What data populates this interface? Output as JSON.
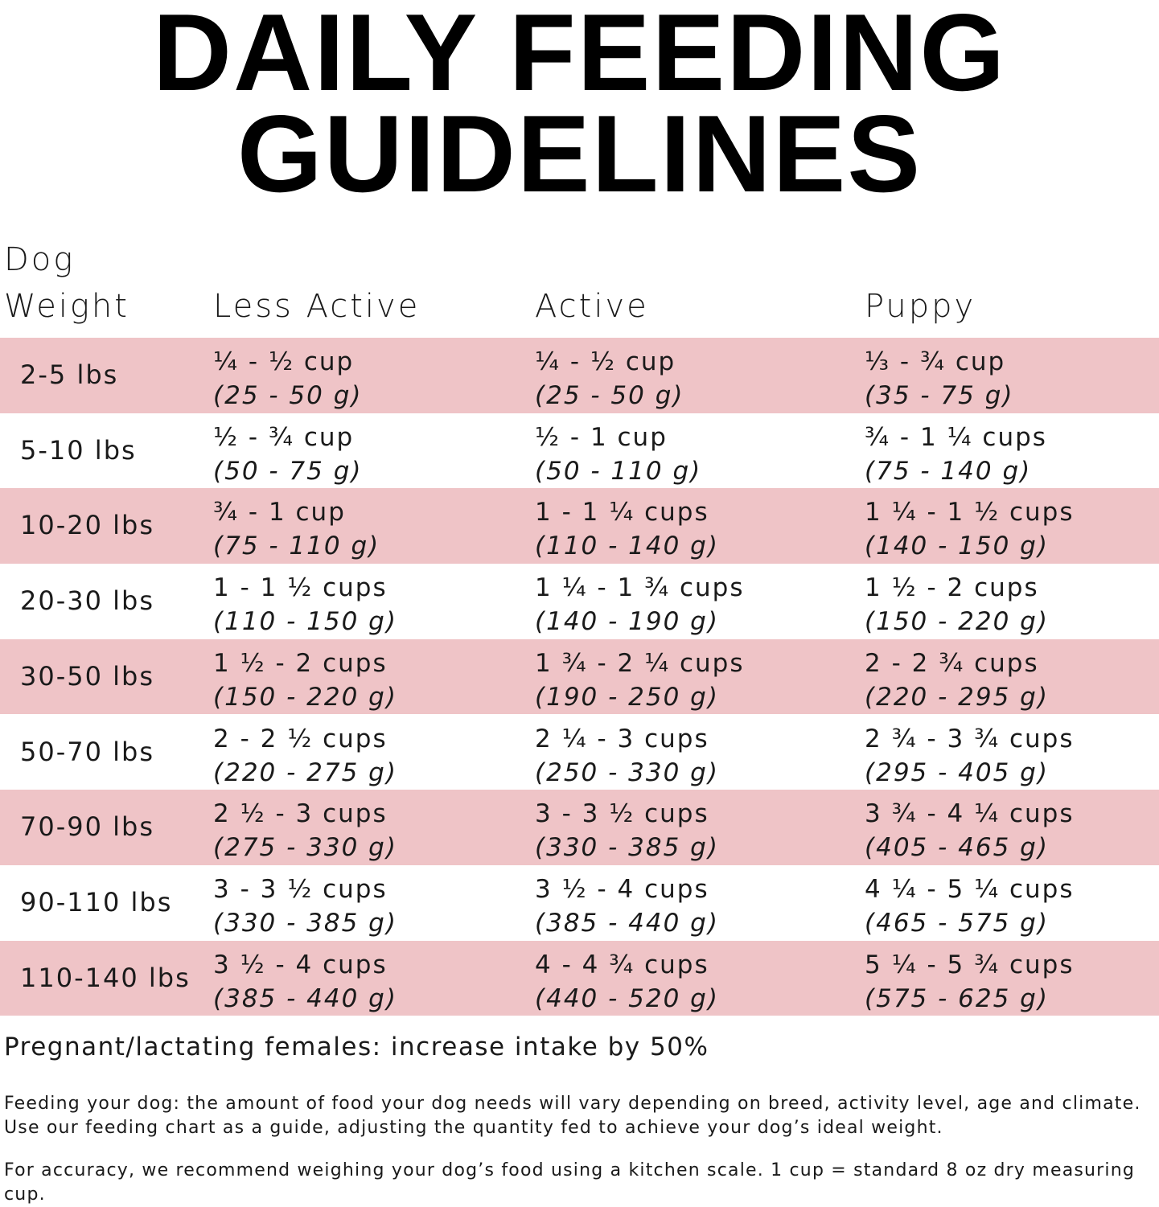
{
  "title": {
    "lines": [
      "DAILY FEEDING",
      "GUIDELINES"
    ]
  },
  "table": {
    "headers": [
      "Dog Weight",
      "Less Active",
      "Active",
      "Puppy"
    ],
    "rows": [
      {
        "weight": "2-5 lbs",
        "cells": [
          [
            "¼ - ½ cup",
            "(25 - 50 g)"
          ],
          [
            "¼ - ½ cup",
            "(25 - 50 g)"
          ],
          [
            "⅓ - ¾ cup",
            "(35 - 75 g)"
          ]
        ]
      },
      {
        "weight": "5-10 lbs",
        "cells": [
          [
            "½ - ¾ cup",
            "(50 - 75 g)"
          ],
          [
            "½ - 1 cup",
            "(50 - 110 g)"
          ],
          [
            "¾ - 1 ¼ cups",
            "(75 - 140 g)"
          ]
        ]
      },
      {
        "weight": "10-20 lbs",
        "cells": [
          [
            "¾ - 1 cup",
            "(75 - 110 g)"
          ],
          [
            "1 - 1 ¼ cups",
            "(110 - 140 g)"
          ],
          [
            "1 ¼ - 1 ½ cups",
            "(140 - 150 g)"
          ]
        ]
      },
      {
        "weight": "20-30 lbs",
        "cells": [
          [
            "1 - 1 ½ cups",
            "(110 - 150 g)"
          ],
          [
            "1 ¼ - 1 ¾ cups",
            "(140 - 190 g)"
          ],
          [
            "1 ½ - 2 cups",
            "(150 - 220 g)"
          ]
        ]
      },
      {
        "weight": "30-50 lbs",
        "cells": [
          [
            "1 ½ - 2 cups",
            "(150 - 220 g)"
          ],
          [
            "1 ¾ - 2 ¼ cups",
            "(190 - 250 g)"
          ],
          [
            "2 - 2 ¾ cups",
            "(220 - 295 g)"
          ]
        ]
      },
      {
        "weight": "50-70 lbs",
        "cells": [
          [
            "2 - 2 ½ cups",
            "(220 - 275 g)"
          ],
          [
            "2 ¼ - 3 cups",
            "(250 - 330 g)"
          ],
          [
            "2 ¾ - 3 ¾ cups",
            "(295 - 405 g)"
          ]
        ]
      },
      {
        "weight": "70-90 lbs",
        "cells": [
          [
            "2 ½ - 3 cups",
            "(275 - 330 g)"
          ],
          [
            "3 - 3 ½ cups",
            "(330 - 385 g)"
          ],
          [
            "3 ¾ - 4 ¼ cups",
            "(405 - 465 g)"
          ]
        ]
      },
      {
        "weight": "90-110 lbs",
        "cells": [
          [
            "3 - 3 ½ cups",
            "(330 - 385 g)"
          ],
          [
            "3 ½ - 4 cups",
            "(385 - 440 g)"
          ],
          [
            "4 ¼ - 5 ¼ cups",
            "(465 - 575 g)"
          ]
        ]
      },
      {
        "weight": "110-140 lbs",
        "cells": [
          [
            "3 ½ - 4 cups",
            "(385 - 440 g)"
          ],
          [
            "4 - 4 ¾ cups",
            "(440 - 520 g)"
          ],
          [
            "5 ¼ - 5 ¾ cups",
            "(575 - 625 g)"
          ]
        ]
      }
    ]
  },
  "note": "Pregnant/lactating females: increase intake by 50%",
  "paragraphs": [
    "Feeding your dog: the amount of food your dog needs will vary depending on breed, activity level, age and climate. Use our feeding chart as a guide, adjusting the quantity fed to achieve your dog’s ideal weight.",
    "For accuracy, we recommend weighing your dog’s food using a kitchen scale. 1 cup = standard 8 oz dry measuring cup."
  ]
}
